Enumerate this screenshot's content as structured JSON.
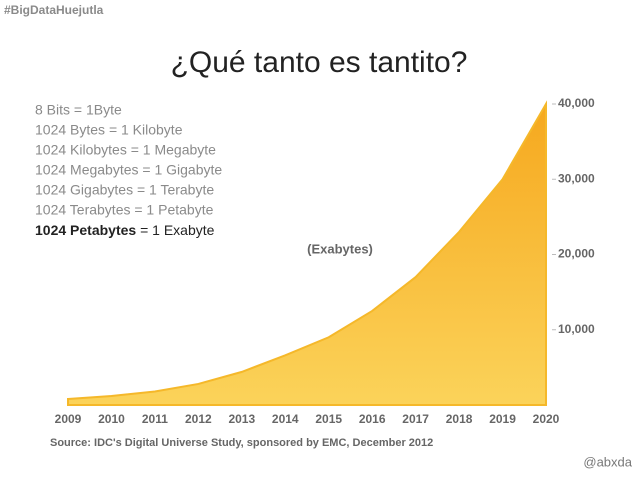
{
  "slide": {
    "hashtag": "#BigDataHuejutla",
    "title": "¿Qué tanto es tantito?",
    "list": [
      "8 Bits = 1Byte",
      "1024 Bytes = 1 Kilobyte",
      "1024 Kilobytes = 1 Megabyte",
      "1024 Megabytes = 1 Gigabyte",
      "1024 Gigabytes = 1 Terabyte",
      "1024 Terabytes = 1 Petabyte"
    ],
    "list_last_bold": "1024 Petabytes",
    "list_last_rest": " = 1 Exabyte",
    "handle": "@abxda"
  },
  "chart_data": {
    "type": "area",
    "annotation": "(Exabytes)",
    "source": "Source: IDC's Digital Universe Study, sponsored by EMC, December 2012",
    "categories": [
      "2009",
      "2010",
      "2011",
      "2012",
      "2013",
      "2014",
      "2015",
      "2016",
      "2017",
      "2018",
      "2019",
      "2020"
    ],
    "values": [
      800,
      1200,
      1800,
      2800,
      4400,
      6600,
      9000,
      12500,
      17000,
      23000,
      30000,
      40000
    ],
    "color": "#f5b82a",
    "ylim": [
      0,
      40000
    ],
    "yticks": [
      {
        "value": 10000,
        "label": "10,000"
      },
      {
        "value": 20000,
        "label": "20,000"
      },
      {
        "value": 30000,
        "label": "30,000"
      },
      {
        "value": 40000,
        "label": "40,000"
      }
    ]
  }
}
